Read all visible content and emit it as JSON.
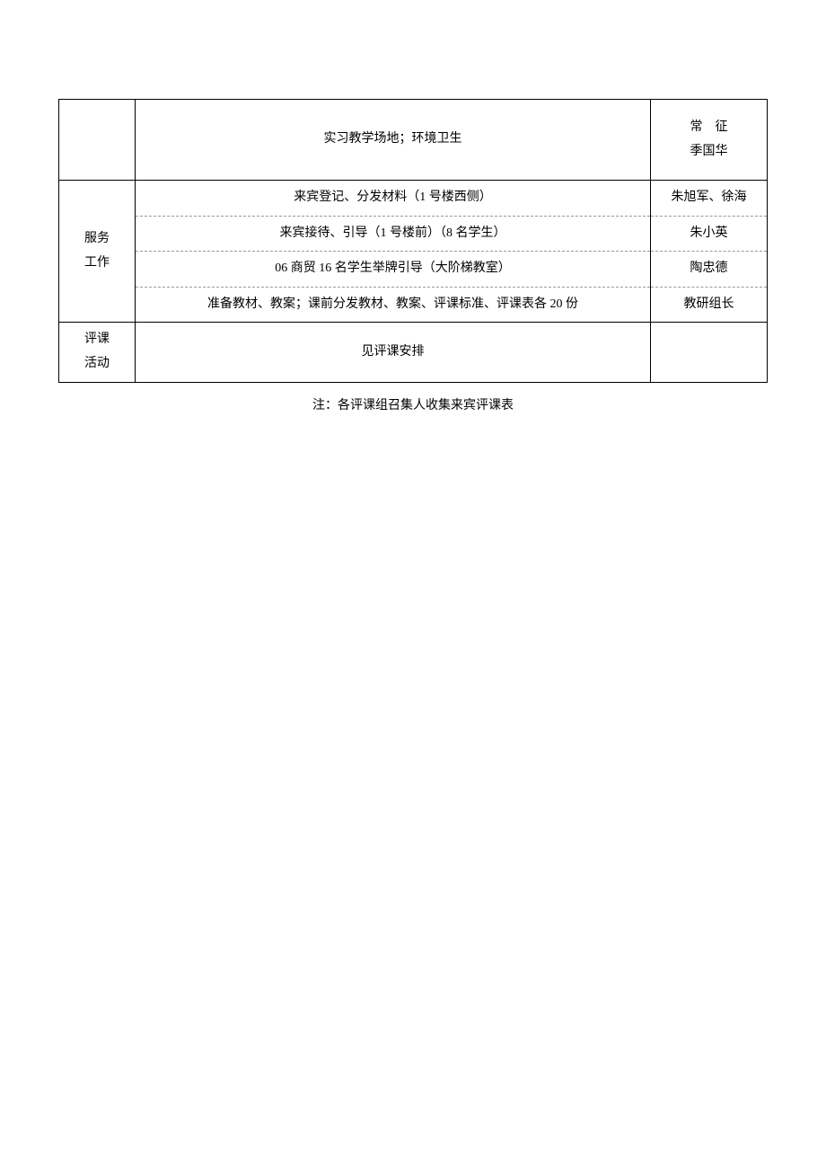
{
  "table": {
    "rows": [
      {
        "col1": "",
        "col2_html": "实习教学场地；环境卫生",
        "col3_html": "常　征<br>季国华"
      },
      {
        "col1_html": "服务<br>工作",
        "sub": [
          {
            "col2": "来宾登记、分发材料（1 号楼西侧）",
            "col3": "朱旭军、徐海"
          },
          {
            "col2": "来宾接待、引导（1 号楼前）（8 名学生）",
            "col3": "朱小英"
          },
          {
            "col2": "06 商贸 16 名学生举牌引导（大阶梯教室）",
            "col3": "陶忠德"
          },
          {
            "col2": "准备教材、教案；课前分发教材、教案、评课标准、评课表各 20 份",
            "col3": "教研组长"
          }
        ]
      },
      {
        "col1_html": "评课<br>活动",
        "col2": "见评课安排",
        "col3": ""
      }
    ]
  },
  "footnote": "注：各评课组召集人收集来宾评课表",
  "colors": {
    "border": "#000000",
    "dashed": "#999999",
    "text": "#000000",
    "background": "#ffffff"
  },
  "font": {
    "family": "SimSun",
    "size_pt": 10.5
  },
  "column_widths": {
    "col1": 85,
    "col3": 130
  }
}
